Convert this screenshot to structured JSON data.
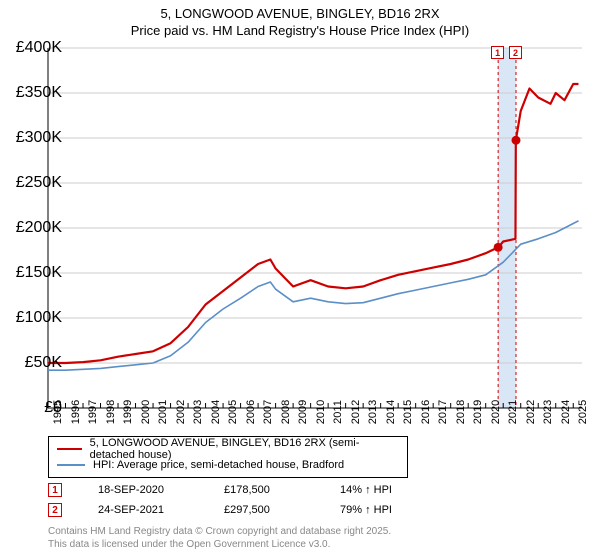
{
  "title": {
    "line1": "5, LONGWOOD AVENUE, BINGLEY, BD16 2RX",
    "line2": "Price paid vs. HM Land Registry's House Price Index (HPI)",
    "fontsize": 13
  },
  "chart": {
    "type": "line",
    "background_color": "#ffffff",
    "grid_color": "#cccccc",
    "ylim": [
      0,
      400000
    ],
    "ytick_step": 50000,
    "y_ticks": [
      "£0",
      "£50K",
      "£100K",
      "£150K",
      "£200K",
      "£250K",
      "£300K",
      "£350K",
      "£400K"
    ],
    "x_years": [
      1995,
      1996,
      1997,
      1998,
      1999,
      2000,
      2001,
      2002,
      2003,
      2004,
      2005,
      2006,
      2007,
      2008,
      2009,
      2010,
      2011,
      2012,
      2013,
      2014,
      2015,
      2016,
      2017,
      2018,
      2019,
      2020,
      2021,
      2022,
      2023,
      2024,
      2025
    ],
    "x_min": 1995,
    "x_max": 2025.5,
    "series": [
      {
        "name": "5, LONGWOOD AVENUE, BINGLEY, BD16 2RX (semi-detached house)",
        "color": "#cc0000",
        "line_width": 2.2,
        "data": [
          [
            1995,
            50000
          ],
          [
            1996,
            50000
          ],
          [
            1997,
            51000
          ],
          [
            1998,
            53000
          ],
          [
            1999,
            57000
          ],
          [
            2000,
            60000
          ],
          [
            2001,
            63000
          ],
          [
            2002,
            72000
          ],
          [
            2003,
            90000
          ],
          [
            2004,
            115000
          ],
          [
            2005,
            130000
          ],
          [
            2006,
            145000
          ],
          [
            2007,
            160000
          ],
          [
            2007.7,
            165000
          ],
          [
            2008,
            155000
          ],
          [
            2009,
            135000
          ],
          [
            2010,
            142000
          ],
          [
            2011,
            135000
          ],
          [
            2012,
            133000
          ],
          [
            2013,
            135000
          ],
          [
            2014,
            142000
          ],
          [
            2015,
            148000
          ],
          [
            2016,
            152000
          ],
          [
            2017,
            156000
          ],
          [
            2018,
            160000
          ],
          [
            2019,
            165000
          ],
          [
            2020,
            172000
          ],
          [
            2020.7,
            178500
          ],
          [
            2020.72,
            178500
          ],
          [
            2021,
            185000
          ],
          [
            2021.7,
            188000
          ],
          [
            2021.72,
            297500
          ],
          [
            2022,
            330000
          ],
          [
            2022.5,
            355000
          ],
          [
            2023,
            345000
          ],
          [
            2023.7,
            338000
          ],
          [
            2024,
            350000
          ],
          [
            2024.5,
            342000
          ],
          [
            2025,
            360000
          ],
          [
            2025.3,
            360000
          ]
        ]
      },
      {
        "name": "HPI: Average price, semi-detached house, Bradford",
        "color": "#5b8fc7",
        "line_width": 1.6,
        "data": [
          [
            1995,
            42000
          ],
          [
            1996,
            42000
          ],
          [
            1997,
            43000
          ],
          [
            1998,
            44000
          ],
          [
            1999,
            46000
          ],
          [
            2000,
            48000
          ],
          [
            2001,
            50000
          ],
          [
            2002,
            58000
          ],
          [
            2003,
            73000
          ],
          [
            2004,
            95000
          ],
          [
            2005,
            110000
          ],
          [
            2006,
            122000
          ],
          [
            2007,
            135000
          ],
          [
            2007.7,
            140000
          ],
          [
            2008,
            132000
          ],
          [
            2009,
            118000
          ],
          [
            2010,
            122000
          ],
          [
            2011,
            118000
          ],
          [
            2012,
            116000
          ],
          [
            2013,
            117000
          ],
          [
            2014,
            122000
          ],
          [
            2015,
            127000
          ],
          [
            2016,
            131000
          ],
          [
            2017,
            135000
          ],
          [
            2018,
            139000
          ],
          [
            2019,
            143000
          ],
          [
            2020,
            148000
          ],
          [
            2021,
            162000
          ],
          [
            2022,
            182000
          ],
          [
            2023,
            188000
          ],
          [
            2024,
            195000
          ],
          [
            2025,
            205000
          ],
          [
            2025.3,
            208000
          ]
        ]
      }
    ],
    "sale_markers": [
      {
        "n": "1",
        "x": 2020.71,
        "y": 178500,
        "band_end": 2021.73
      },
      {
        "n": "2",
        "x": 2021.73,
        "y": 297500
      }
    ],
    "band_color": "#d8e6f5",
    "marker_dot_color": "#cc0000",
    "marker_box_border": "#cc0000",
    "vline_dash": "3,3"
  },
  "legend": {
    "rows": [
      {
        "color": "#cc0000",
        "width": 2.5,
        "label": "5, LONGWOOD AVENUE, BINGLEY, BD16 2RX (semi-detached house)"
      },
      {
        "color": "#5b8fc7",
        "width": 1.8,
        "label": "HPI: Average price, semi-detached house, Bradford"
      }
    ]
  },
  "sales": [
    {
      "n": "1",
      "date": "18-SEP-2020",
      "price": "£178,500",
      "delta": "14% ↑ HPI"
    },
    {
      "n": "2",
      "date": "24-SEP-2021",
      "price": "£297,500",
      "delta": "79% ↑ HPI"
    }
  ],
  "footnote": {
    "line1": "Contains HM Land Registry data © Crown copyright and database right 2025.",
    "line2": "This data is licensed under the Open Government Licence v3.0.",
    "color": "#888888"
  }
}
